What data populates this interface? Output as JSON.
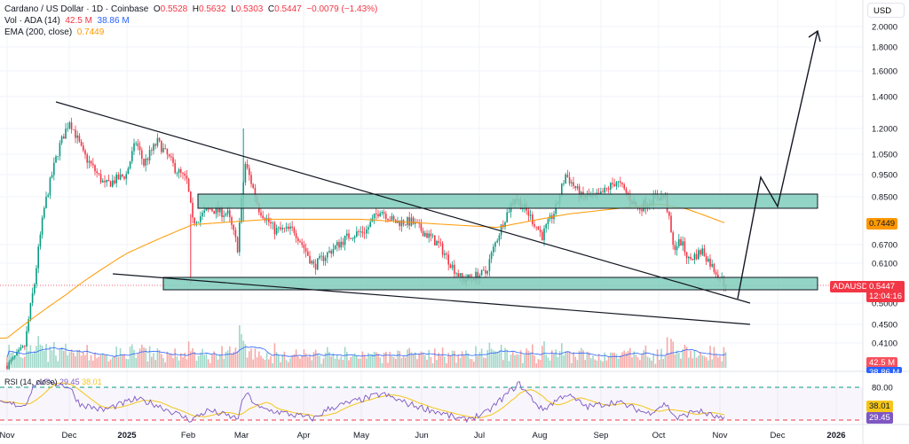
{
  "header": {
    "symbol": "Cardano / US Dollar · 1D · Coinbase",
    "open_label": "O",
    "open": "0.5528",
    "high_label": "H",
    "high": "0.5632",
    "low_label": "L",
    "low": "0.5303",
    "close_label": "C",
    "close": "0.5447",
    "change": "−0.0079 (−1.43%)",
    "vol_label": "Vol · ADA (14)",
    "vol": "42.5 M",
    "vol_ma": "38.86 M",
    "ema_label": "EMA (200, close)",
    "ema": "0.7449",
    "rsi_label": "RSI (14, close)",
    "rsi": "29.45",
    "rsi_ma": "38.01"
  },
  "axis": {
    "currency": "USD",
    "price_ticks": [
      "2.0000",
      "1.8000",
      "1.6000",
      "1.4000",
      "1.2000",
      "1.0500",
      "0.9500",
      "0.8500",
      "0.6700",
      "0.6100",
      "0.5000",
      "0.4500",
      "0.4100"
    ],
    "rsi_ticks": [
      "80.00"
    ],
    "time_ticks": [
      "Nov",
      "Dec",
      "2025",
      "Feb",
      "Mar",
      "Apr",
      "May",
      "Jun",
      "Jul",
      "Aug",
      "Sep",
      "Oct",
      "Nov",
      "Dec",
      "2026"
    ]
  },
  "tags": {
    "ema": "0.7449",
    "symbol": "ADAUSD",
    "price": "0.5447",
    "countdown": "12:04:16",
    "vol": "42.5 M",
    "vol_ma": "38.86 M",
    "rsi_ma": "38.01",
    "rsi": "29.45"
  },
  "colors": {
    "up": "#089981",
    "down": "#f23645",
    "ema": "#ff9800",
    "vol_ma": "#2962ff",
    "rsi": "#7e57c2",
    "rsi_ma": "#f5c518",
    "zone": "#7fcdbb"
  },
  "chart_data": {
    "type": "candlestick",
    "title": "Cardano / US Dollar · 1D · Coinbase",
    "ylabel": "USD",
    "y_scale": "log",
    "ylim": [
      0.41,
      2.0
    ],
    "grid": true,
    "price_path": [
      [
        "2024-11-01",
        0.34
      ],
      [
        "2024-11-10",
        0.4
      ],
      [
        "2024-11-15",
        0.55
      ],
      [
        "2024-11-20",
        0.8
      ],
      [
        "2024-11-28",
        1.1
      ],
      [
        "2024-12-03",
        1.25
      ],
      [
        "2024-12-10",
        1.05
      ],
      [
        "2024-12-21",
        0.9
      ],
      [
        "2025-01-01",
        0.95
      ],
      [
        "2025-01-06",
        1.12
      ],
      [
        "2025-01-10",
        1.0
      ],
      [
        "2025-01-17",
        1.12
      ],
      [
        "2025-01-26",
        0.98
      ],
      [
        "2025-02-01",
        0.92
      ],
      [
        "2025-02-04",
        0.75
      ],
      [
        "2025-02-13",
        0.8
      ],
      [
        "2025-02-22",
        0.78
      ],
      [
        "2025-02-27",
        0.66
      ],
      [
        "2025-03-03",
        1.0
      ],
      [
        "2025-03-10",
        0.8
      ],
      [
        "2025-03-18",
        0.72
      ],
      [
        "2025-03-28",
        0.72
      ],
      [
        "2025-04-07",
        0.6
      ],
      [
        "2025-04-14",
        0.64
      ],
      [
        "2025-04-25",
        0.7
      ],
      [
        "2025-05-04",
        0.72
      ],
      [
        "2025-05-11",
        0.8
      ],
      [
        "2025-05-18",
        0.75
      ],
      [
        "2025-05-27",
        0.75
      ],
      [
        "2025-06-10",
        0.67
      ],
      [
        "2025-06-17",
        0.6
      ],
      [
        "2025-06-22",
        0.56
      ],
      [
        "2025-07-04",
        0.58
      ],
      [
        "2025-07-13",
        0.75
      ],
      [
        "2025-07-19",
        0.85
      ],
      [
        "2025-07-26",
        0.78
      ],
      [
        "2025-08-02",
        0.7
      ],
      [
        "2025-08-09",
        0.8
      ],
      [
        "2025-08-14",
        0.95
      ],
      [
        "2025-08-22",
        0.85
      ],
      [
        "2025-08-31",
        0.85
      ],
      [
        "2025-09-09",
        0.92
      ],
      [
        "2025-09-20",
        0.8
      ],
      [
        "2025-09-29",
        0.85
      ],
      [
        "2025-10-04",
        0.85
      ],
      [
        "2025-10-08",
        0.66
      ],
      [
        "2025-10-12",
        0.68
      ],
      [
        "2025-10-16",
        0.62
      ],
      [
        "2025-10-23",
        0.65
      ],
      [
        "2025-10-28",
        0.6
      ],
      [
        "2025-11-04",
        0.5447
      ]
    ],
    "ema_200": [
      [
        "2024-11-01",
        0.42
      ],
      [
        "2024-12-01",
        0.52
      ],
      [
        "2025-01-01",
        0.64
      ],
      [
        "2025-02-04",
        0.74
      ],
      [
        "2025-03-15",
        0.76
      ],
      [
        "2025-05-01",
        0.76
      ],
      [
        "2025-06-15",
        0.74
      ],
      [
        "2025-07-10",
        0.73
      ],
      [
        "2025-08-15",
        0.78
      ],
      [
        "2025-10-01",
        0.82
      ],
      [
        "2025-10-15",
        0.8
      ],
      [
        "2025-11-04",
        0.7449
      ]
    ],
    "rsi_path": [
      [
        "2024-11-01",
        55
      ],
      [
        "2024-11-10",
        52
      ],
      [
        "2024-11-15",
        85
      ],
      [
        "2024-11-22",
        90
      ],
      [
        "2024-12-03",
        80
      ],
      [
        "2024-12-08",
        55
      ],
      [
        "2024-12-20",
        45
      ],
      [
        "2025-01-06",
        62
      ],
      [
        "2025-01-15",
        55
      ],
      [
        "2025-02-03",
        30
      ],
      [
        "2025-02-12",
        45
      ],
      [
        "2025-02-27",
        32
      ],
      [
        "2025-03-03",
        72
      ],
      [
        "2025-03-10",
        48
      ],
      [
        "2025-04-07",
        32
      ],
      [
        "2025-04-15",
        48
      ],
      [
        "2025-05-12",
        70
      ],
      [
        "2025-05-25",
        55
      ],
      [
        "2025-06-10",
        42
      ],
      [
        "2025-06-22",
        30
      ],
      [
        "2025-07-04",
        40
      ],
      [
        "2025-07-21",
        86
      ],
      [
        "2025-08-02",
        45
      ],
      [
        "2025-08-14",
        70
      ],
      [
        "2025-08-25",
        50
      ],
      [
        "2025-09-09",
        58
      ],
      [
        "2025-09-25",
        40
      ],
      [
        "2025-10-04",
        55
      ],
      [
        "2025-10-10",
        32
      ],
      [
        "2025-10-20",
        45
      ],
      [
        "2025-11-04",
        29.45
      ]
    ],
    "rsi_levels": [
      80,
      30
    ],
    "drawings": [
      "descending trendline",
      "lower support line",
      "resistance zone 0.82–0.87",
      "support zone 0.53–0.56",
      "projected path arrow to ~2.00"
    ]
  }
}
